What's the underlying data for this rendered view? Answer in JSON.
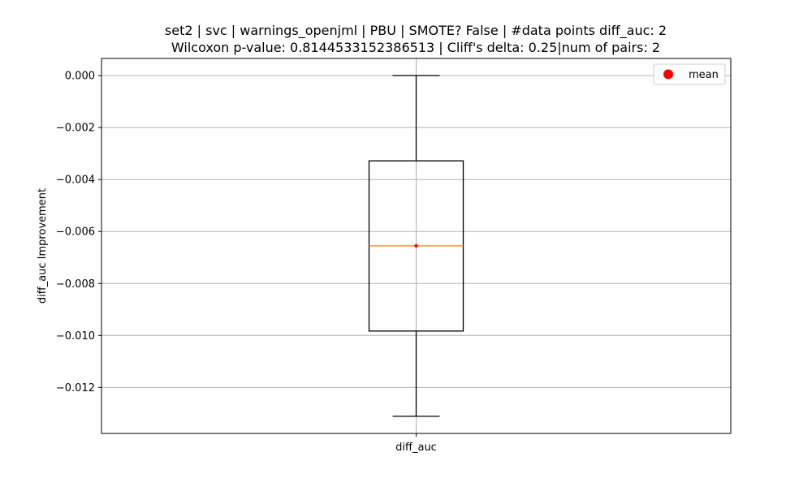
{
  "chart_data": {
    "type": "box",
    "title_line1": "set2 | svc | warnings_openjml | PBU | SMOTE? False | #data points diff_auc: 2",
    "title_line2": "Wilcoxon p-value: 0.8144533152386513 | Cliff's delta: 0.25|num of pairs: 2",
    "xlabel": "",
    "ylabel": "diff_auc Improvement",
    "categories": [
      "diff_auc"
    ],
    "boxes": [
      {
        "category": "diff_auc",
        "whisker_low": -0.01311,
        "q1": -0.00983,
        "median": -0.00655,
        "q3": -0.00328,
        "whisker_high": 0.0,
        "mean": -0.00655
      }
    ],
    "yticks": [
      0.0,
      -0.002,
      -0.004,
      -0.006,
      -0.008,
      -0.01,
      -0.012
    ],
    "ytick_labels": [
      "0.000",
      "−0.002",
      "−0.004",
      "−0.006",
      "−0.008",
      "−0.010",
      "−0.012"
    ],
    "ylim": [
      -0.01377,
      0.00066
    ],
    "grid": true,
    "legend": {
      "position": "top-right",
      "entries": [
        "mean"
      ]
    },
    "colors": {
      "box": "#000000",
      "median": "#ff7f0e",
      "mean": "#ff0000",
      "grid": "#b0b0b0"
    }
  }
}
